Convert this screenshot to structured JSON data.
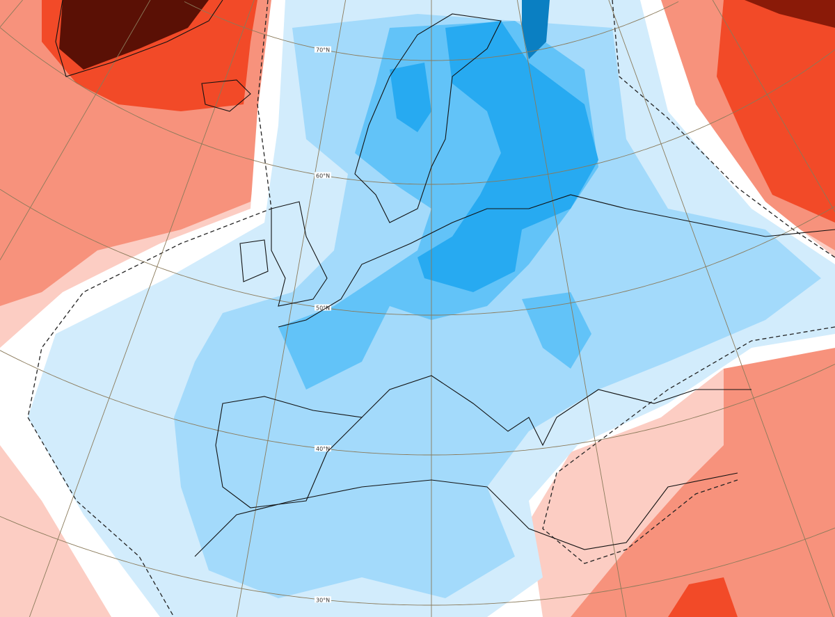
{
  "map": {
    "projection": "polar-stereographic",
    "latitude_labels": [
      "70°N",
      "60°N",
      "50°N",
      "40°N",
      "30°N"
    ],
    "legend": "none visible",
    "colors": {
      "very_warm": "#5a1005",
      "warm_strong": "#f24a28",
      "warm": "#f7927c",
      "warm_light": "#fccdc3",
      "neutral": "#ffffff",
      "cool_light": "#d2ecfc",
      "cool": "#a3dafb",
      "cool_mid": "#62c3f8",
      "cool_strong": "#27aaf1",
      "cool_very": "#0a7fc2",
      "coastline": "#111111",
      "grid": "#8a7a5a"
    }
  }
}
